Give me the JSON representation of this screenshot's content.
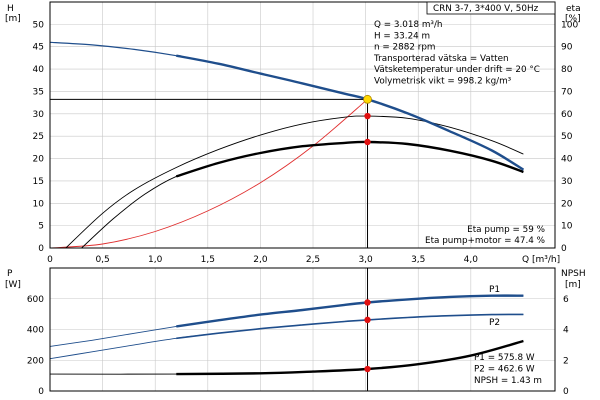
{
  "header": {
    "title": "CRN 3-7, 3*400 V, 50Hz"
  },
  "info": {
    "lines": [
      "Q = 3.018 m³/h",
      "H = 33.24 m",
      "n = 2882 rpm",
      "Transporterad vätska = Vatten",
      "Vätsketemperatur under drift = 20 °C",
      "Volymetrisk vikt = 998.2 kg/m³"
    ],
    "eta_lines": [
      "Eta pump = 59 %",
      "Eta pump+motor = 47.4 %"
    ],
    "power_lines": [
      "P1 = 575.8 W",
      "P2 = 462.6 W",
      "NPSH = 1.43 m"
    ]
  },
  "colors": {
    "head": "#1f4e8c",
    "power": "#1f4e8c",
    "eta": "#000000",
    "system": "#e03030",
    "npsh": "#000000",
    "marker": "#e01010",
    "op": "#ffd700",
    "grid": "#c8c8c8"
  },
  "chart_data": [
    {
      "type": "line",
      "title": "",
      "xlabel": "Q [m³/h]",
      "ylabel_left": "H",
      "ylabel_left_unit": "[m]",
      "ylabel_right": "eta",
      "ylabel_right_unit": "[%]",
      "xlim": [
        0,
        4.8
      ],
      "ylim_left": [
        0,
        55
      ],
      "ylim_right": [
        0,
        110
      ],
      "grid": true,
      "xticks": [
        "0",
        "0,5",
        "1,0",
        "1,5",
        "2,0",
        "2,5",
        "3,0",
        "3,5",
        "4,0"
      ],
      "yticks_left": [
        "0",
        "5",
        "10",
        "15",
        "20",
        "25",
        "30",
        "35",
        "40",
        "45",
        "50"
      ],
      "yticks_right": [
        "0",
        "10",
        "20",
        "30",
        "40",
        "50",
        "60",
        "70",
        "80",
        "90",
        "100"
      ],
      "series": [
        {
          "role": "head",
          "axis": "left",
          "x": [
            0,
            0.4,
            0.8,
            1.2,
            1.6,
            2.0,
            2.4,
            2.8,
            3.018,
            3.4,
            3.8,
            4.2,
            4.5
          ],
          "y": [
            46,
            45.4,
            44.4,
            43,
            41.2,
            39,
            36.8,
            34.5,
            33.24,
            30.1,
            26.1,
            21.8,
            17.5
          ]
        },
        {
          "role": "eta_pump",
          "axis": "right",
          "x": [
            0.15,
            0.5,
            0.8,
            1.2,
            1.6,
            2.0,
            2.4,
            2.8,
            3.018,
            3.4,
            3.8,
            4.2,
            4.5
          ],
          "y": [
            0,
            15.5,
            26,
            36,
            44,
            50.5,
            55.5,
            58.5,
            59,
            58,
            54,
            48,
            42
          ]
        },
        {
          "role": "eta_pump_motor",
          "axis": "right",
          "x": [
            0.3,
            0.6,
            0.9,
            1.2,
            1.6,
            2.0,
            2.4,
            2.8,
            3.018,
            3.4,
            3.8,
            4.2,
            4.5
          ],
          "y": [
            0,
            13,
            24,
            32,
            38,
            42.5,
            45.5,
            47,
            47.4,
            46.5,
            43.5,
            39,
            34
          ]
        },
        {
          "role": "system_curve",
          "axis": "left",
          "x": [
            0,
            0.5,
            1.0,
            1.5,
            2.0,
            2.5,
            3.018
          ],
          "y": [
            0,
            0.9,
            3.7,
            8.3,
            14.6,
            22.8,
            33.24
          ]
        }
      ],
      "operating_point": {
        "x": 3.018,
        "y_head": 33.24,
        "y_eta_pump": 59,
        "y_eta_pump_motor": 47.4
      }
    },
    {
      "type": "line",
      "title": "",
      "xlabel": "",
      "ylabel_left": "P",
      "ylabel_left_unit": "[W]",
      "ylabel_right": "NPSH",
      "ylabel_right_unit": "[m]",
      "xlim": [
        0,
        4.8
      ],
      "ylim_left": [
        0,
        800
      ],
      "ylim_right": [
        0,
        8
      ],
      "grid": true,
      "yticks_left": [
        "0",
        "200",
        "400",
        "600"
      ],
      "yticks_right": [
        "0",
        "2",
        "4",
        "6"
      ],
      "series": [
        {
          "name": "P1",
          "role": "P1",
          "axis": "left",
          "x": [
            0,
            0.4,
            0.8,
            1.2,
            1.6,
            2.0,
            2.4,
            2.8,
            3.018,
            3.4,
            3.8,
            4.2,
            4.5
          ],
          "y": [
            290,
            330,
            375,
            420,
            460,
            497,
            527,
            560,
            575.8,
            596,
            612,
            620,
            620
          ]
        },
        {
          "name": "P2",
          "role": "P2",
          "axis": "left",
          "x": [
            0,
            0.4,
            0.8,
            1.2,
            1.6,
            2.0,
            2.4,
            2.8,
            3.018,
            3.4,
            3.8,
            4.2,
            4.5
          ],
          "y": [
            210,
            255,
            300,
            343,
            376,
            405,
            430,
            452,
            462.6,
            478,
            490,
            497,
            498
          ]
        },
        {
          "role": "NPSH",
          "axis": "right",
          "x": [
            0,
            1.2,
            2.0,
            2.5,
            3.018,
            3.5,
            4.0,
            4.5
          ],
          "y": [
            1.1,
            1.1,
            1.15,
            1.26,
            1.43,
            1.74,
            2.3,
            3.25
          ]
        }
      ],
      "operating_point": {
        "x": 3.018,
        "y_P1": 575.8,
        "y_P2": 462.6,
        "y_NPSH": 1.43
      }
    }
  ]
}
